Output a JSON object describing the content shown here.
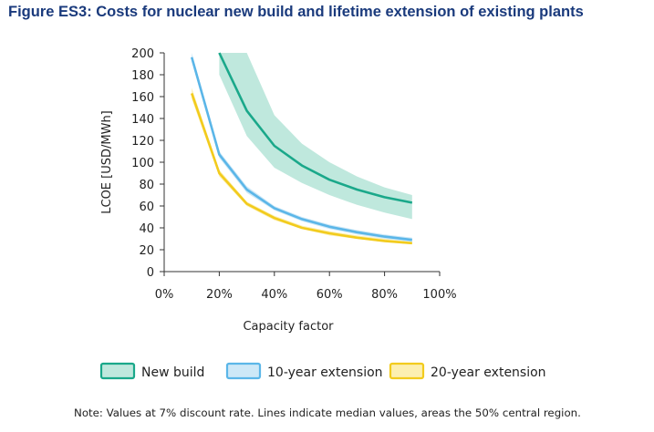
{
  "chart_data": {
    "type": "line",
    "title": "Figure ES3: Costs for nuclear new build and lifetime extension of existing plants",
    "xlabel": "Capacity factor",
    "ylabel": "LCOE [USD/MWh]",
    "xlim": [
      0,
      100
    ],
    "ylim": [
      0,
      200
    ],
    "xticks": [
      0,
      20,
      40,
      60,
      80,
      100
    ],
    "xtick_labels": [
      "0%",
      "20%",
      "40%",
      "60%",
      "80%",
      "100%"
    ],
    "yticks": [
      0,
      20,
      40,
      60,
      80,
      100,
      120,
      140,
      160,
      180,
      200
    ],
    "ytick_labels": [
      "0",
      "20",
      "40",
      "60",
      "80",
      "100",
      "120",
      "140",
      "160",
      "180",
      "200"
    ],
    "grid": false,
    "legend_position": "bottom",
    "series": [
      {
        "name": "New build",
        "color": "#1aa88a",
        "fill": "#bfe8dd",
        "x": [
          20,
          30,
          40,
          50,
          60,
          70,
          80,
          90
        ],
        "median": [
          200,
          147,
          115,
          97,
          84,
          75,
          68,
          63
        ],
        "lower": [
          180,
          124,
          95,
          81,
          70,
          61,
          54,
          48
        ],
        "upper": [
          200,
          200,
          143,
          117,
          100,
          87,
          77,
          70
        ]
      },
      {
        "name": "10-year extension",
        "color": "#5bb6e8",
        "fill": "#cde8f7",
        "x": [
          10,
          20,
          30,
          40,
          50,
          60,
          70,
          80,
          90
        ],
        "median": [
          196,
          107,
          75,
          58,
          48,
          41,
          36,
          32,
          29
        ],
        "lower": [
          192,
          104,
          72,
          56,
          46,
          39,
          34,
          30,
          27
        ],
        "upper": [
          200,
          110,
          78,
          60,
          50,
          43,
          38,
          34,
          31
        ]
      },
      {
        "name": "20-year extension",
        "color": "#f2cb1d",
        "fill": "#fcefb0",
        "x": [
          10,
          20,
          30,
          40,
          50,
          60,
          70,
          80,
          90
        ],
        "median": [
          163,
          90,
          62,
          49,
          40,
          35,
          31,
          28,
          26
        ],
        "lower": [
          158,
          87,
          60,
          47,
          39,
          33,
          30,
          27,
          25
        ],
        "upper": [
          168,
          93,
          64,
          51,
          42,
          37,
          33,
          30,
          27
        ]
      }
    ],
    "note": "Note: Values at 7% discount rate. Lines indicate median values, areas the 50% central region."
  }
}
